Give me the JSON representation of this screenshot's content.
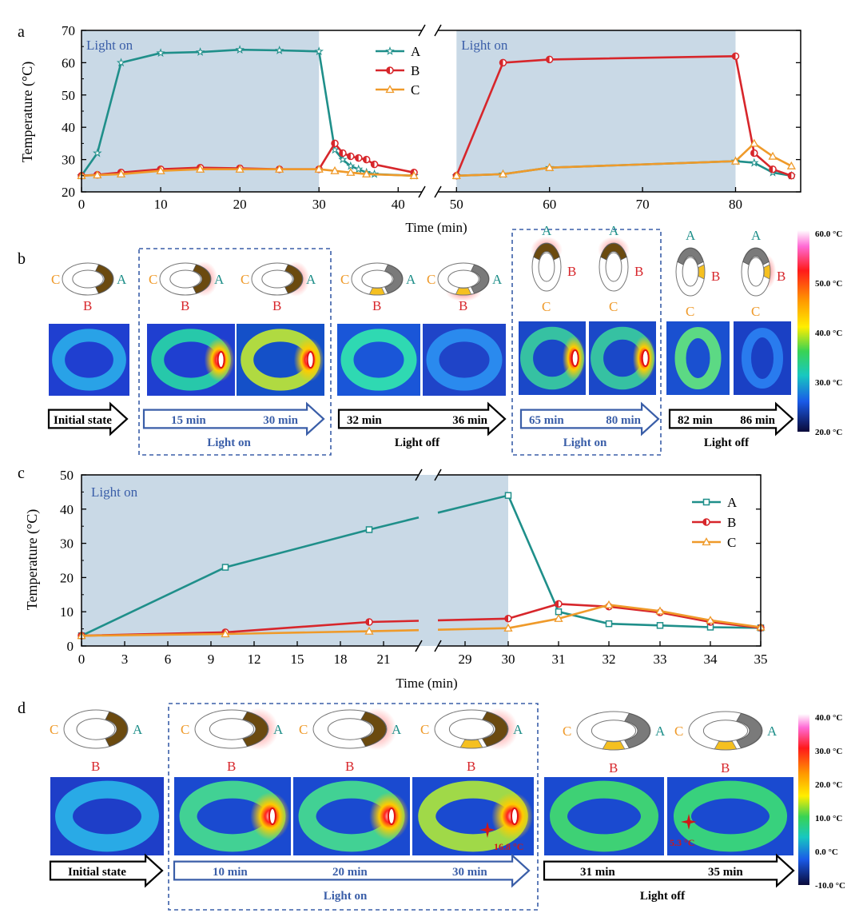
{
  "colors": {
    "A": "#1f8f8a",
    "B": "#d7262b",
    "C": "#ef9a2a",
    "shade": "#c9d9e6",
    "lighton": "#3a5ea8",
    "dashbox": "#3a5ea8"
  },
  "chart_data": [
    {
      "type": "line",
      "panel_label": "a",
      "xlabel": "Time (min)",
      "ylabel": "Temperature (°C)",
      "ylim": [
        20,
        70
      ],
      "yticks": [
        "20",
        "30",
        "40",
        "50",
        "60",
        "70"
      ],
      "xticks": [
        "0",
        "10",
        "20",
        "30",
        "40",
        "50",
        "60",
        "70",
        "80"
      ],
      "broken_x_axis": {
        "segment1": [
          0,
          43
        ],
        "segment2": [
          48,
          87
        ]
      },
      "shaded_regions": [
        {
          "x": [
            0,
            30
          ],
          "label": "Light on"
        },
        {
          "x": [
            50,
            80
          ],
          "label": "Light on"
        }
      ],
      "legend": "top-center",
      "series": [
        {
          "name": "A",
          "marker": "star",
          "points": [
            [
              0,
              25
            ],
            [
              2,
              32
            ],
            [
              5,
              60
            ],
            [
              10,
              63
            ],
            [
              15,
              63.3
            ],
            [
              20,
              64
            ],
            [
              25,
              63.8
            ],
            [
              30,
              63.5
            ],
            [
              32,
              33
            ],
            [
              33,
              30
            ],
            [
              34,
              28
            ],
            [
              35,
              27
            ],
            [
              36,
              26
            ],
            [
              37,
              25.5
            ],
            [
              42,
              25
            ],
            [
              50,
              25
            ],
            [
              55,
              25.5
            ],
            [
              60,
              27.5
            ],
            [
              80,
              29.5
            ],
            [
              82,
              29
            ],
            [
              84,
              26
            ],
            [
              86,
              25
            ]
          ]
        },
        {
          "name": "B",
          "marker": "half-circle",
          "points": [
            [
              0,
              25
            ],
            [
              2,
              25.3
            ],
            [
              5,
              26
            ],
            [
              10,
              27
            ],
            [
              15,
              27.5
            ],
            [
              20,
              27.3
            ],
            [
              25,
              27
            ],
            [
              30,
              27
            ],
            [
              32,
              35
            ],
            [
              33,
              32
            ],
            [
              34,
              31
            ],
            [
              35,
              30.5
            ],
            [
              36,
              30
            ],
            [
              37,
              28.5
            ],
            [
              42,
              26
            ],
            [
              50,
              25
            ],
            [
              55,
              60
            ],
            [
              60,
              61
            ],
            [
              80,
              62
            ],
            [
              82,
              32
            ],
            [
              84,
              27
            ],
            [
              86,
              25
            ]
          ]
        },
        {
          "name": "C",
          "marker": "triangle",
          "points": [
            [
              0,
              25
            ],
            [
              2,
              25.2
            ],
            [
              5,
              25.5
            ],
            [
              10,
              26.5
            ],
            [
              15,
              27
            ],
            [
              20,
              27
            ],
            [
              25,
              27
            ],
            [
              30,
              27
            ],
            [
              32,
              26.5
            ],
            [
              34,
              26
            ],
            [
              36,
              25.5
            ],
            [
              42,
              25
            ],
            [
              50,
              25
            ],
            [
              55,
              25.5
            ],
            [
              60,
              27.5
            ],
            [
              80,
              29.5
            ],
            [
              82,
              35
            ],
            [
              84,
              31
            ],
            [
              86,
              28
            ]
          ]
        }
      ]
    },
    {
      "type": "line",
      "panel_label": "c",
      "xlabel": "Time (min)",
      "ylabel": "Temperature (°C)",
      "ylim": [
        0,
        50
      ],
      "yticks": [
        "0",
        "10",
        "20",
        "30",
        "40",
        "50"
      ],
      "xticks": [
        "0",
        "3",
        "6",
        "9",
        "12",
        "15",
        "18",
        "21",
        "29",
        "30",
        "31",
        "32",
        "33",
        "34",
        "35"
      ],
      "broken_x_axis": {
        "break_between": [
          "21",
          "29"
        ]
      },
      "shaded_regions": [
        {
          "x": [
            0,
            30
          ],
          "label": "Light on"
        }
      ],
      "legend": "right",
      "series": [
        {
          "name": "A",
          "marker": "square",
          "points": [
            [
              "0",
              3
            ],
            [
              "10",
              23
            ],
            [
              "20",
              34
            ],
            [
              "30",
              44
            ],
            [
              "31",
              10
            ],
            [
              "32",
              6.5
            ],
            [
              "33",
              6
            ],
            [
              "34",
              5.5
            ],
            [
              "35",
              5.3
            ]
          ]
        },
        {
          "name": "B",
          "marker": "half-circle",
          "points": [
            [
              "0",
              3
            ],
            [
              "10",
              4
            ],
            [
              "20",
              7
            ],
            [
              "30",
              8
            ],
            [
              "31",
              12.3
            ],
            [
              "32",
              11.5
            ],
            [
              "33",
              9.8
            ],
            [
              "34",
              7
            ],
            [
              "35",
              5.3
            ]
          ]
        },
        {
          "name": "C",
          "marker": "triangle",
          "points": [
            [
              "0",
              3
            ],
            [
              "10",
              3.5
            ],
            [
              "20",
              4.3
            ],
            [
              "30",
              5.2
            ],
            [
              "31",
              8
            ],
            [
              "32",
              12
            ],
            [
              "33",
              10.2
            ],
            [
              "34",
              7.5
            ],
            [
              "35",
              5.5
            ]
          ]
        }
      ]
    }
  ],
  "panel_b": {
    "label": "b",
    "letters": {
      "A": "A",
      "B": "B",
      "C": "C"
    },
    "arrows": [
      {
        "t1": "Initial state",
        "t2": "",
        "caption": ""
      },
      {
        "t1": "15 min",
        "t2": "30 min",
        "caption": "Light on"
      },
      {
        "t1": "32 min",
        "t2": "36 min",
        "caption": "Light off"
      },
      {
        "t1": "65 min",
        "t2": "80 min",
        "caption": "Light on"
      },
      {
        "t1": "82 min",
        "t2": "86 min",
        "caption": "Light off"
      }
    ],
    "colorbar": [
      "60.0 °C",
      "50.0 °C",
      "40.0 °C",
      "30.0 °C",
      "20.0 °C"
    ]
  },
  "panel_d": {
    "label": "d",
    "letters": {
      "A": "A",
      "B": "B",
      "C": "C"
    },
    "arrows": [
      {
        "t1": "Initial state",
        "t2": "",
        "t3": "",
        "caption": ""
      },
      {
        "t1": "10 min",
        "t2": "20 min",
        "t3": "30 min",
        "caption": "Light on"
      },
      {
        "t1": "31 min",
        "t2": "35 min",
        "t3": "",
        "caption": "Light off"
      }
    ],
    "spots": [
      "16.8 °C",
      "5.3 °C"
    ],
    "colorbar": [
      "40.0 °C",
      "30.0 °C",
      "20.0 °C",
      "10.0 °C",
      "0.0 °C",
      "-10.0 °C"
    ]
  }
}
